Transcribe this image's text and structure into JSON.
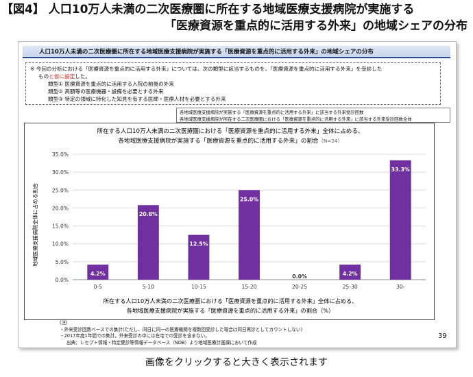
{
  "figure_title": {
    "line1": "【図4】 人口10万人未満の二次医療圏に所在する地域医療支援病院が実施する",
    "line2": "「医療資源を重点的に活用する外来」の地域シェアの分布"
  },
  "slide": {
    "banner": "人口10万人未満の二次医療圏に所在する地域医療支援病院が実施する「医療資源を重点的に活用する外来」の地域シェアの分布",
    "note": {
      "line1": "※ 今回の分析における「医療資源を重点的に活用する外来」については、次の類型に該当するものを、「医療資源を重点的に活用する外来」を受診した",
      "line2_pre": "もの",
      "line2_red": "と仮に設定",
      "line2_post": "した。",
      "types": [
        "類型① 医療資源を重点的に活用する入院の前後の外来",
        "類型② 高額等の医療機器・設備を必要とする外来",
        "類型③ 特定の領域に特化した知見を有する医師・医療人材を必要とする外来"
      ]
    },
    "legend_formula": {
      "numerator": "各地域医療支援病院が実施する「医療資源を重点的に活用する外来」に該当する外来受診回数",
      "denominator": "各地域医療支援病院が所在する二次医療圏における「医療資源を重点的に活用する外来」に該当する外来受診回数全体"
    },
    "footnotes": {
      "heading": "(注)",
      "items": [
        "・外来受診回数ベースでの集計(ただし、同日に同一の医療機関を複数回受診した場合は同日再診としてカウントしない)",
        "・2017年度1年間での集計。外来受診の中には在宅での受診を含まない。"
      ],
      "source": "出典：レセプト情報・特定健診等情報データベース（NDB）より地域医療計画課において作成"
    },
    "page_number": "39"
  },
  "chart_data": {
    "type": "bar",
    "title_line1": "所在する人口10万人未満の二次医療圏における「医療資源を重点的に活用する外来」全体に占める、",
    "title_line2": "各地域医療支援病院が実施する「医療資源を重点的に活用する外来」の割合",
    "title_n": "（N=24）",
    "xlabel_line1": "所在する人口10万人未満の二次医療圏における「医療資源を重点的に活用する外来」全体に占める、",
    "xlabel_line2": "各地域医療支援病院が実施する「医療資源を重点的に活用する外来」の割合（%）",
    "ylabel": "地域医療支援病院全体に占める割合",
    "categories": [
      "0-5",
      "5-10",
      "10-15",
      "15-20",
      "20-25",
      "25-30",
      "30-"
    ],
    "values": [
      4.2,
      20.8,
      12.5,
      25.0,
      0.0,
      4.2,
      33.3
    ],
    "data_labels": [
      "4.2%",
      "20.8%",
      "12.5%",
      "25.0%",
      "0.0%",
      "4.2%",
      "33.3%"
    ],
    "y_ticks": [
      0,
      5,
      10,
      15,
      20,
      25,
      30,
      35
    ],
    "y_tick_labels": [
      "0.0%",
      "5.0%",
      "10.0%",
      "15.0%",
      "20.0%",
      "25.0%",
      "30.0%",
      "35.0%"
    ],
    "ylim": [
      0,
      35
    ],
    "grid": true,
    "bar_color": "#7030a0"
  },
  "caption": "画像をクリックすると大きく表示されます"
}
